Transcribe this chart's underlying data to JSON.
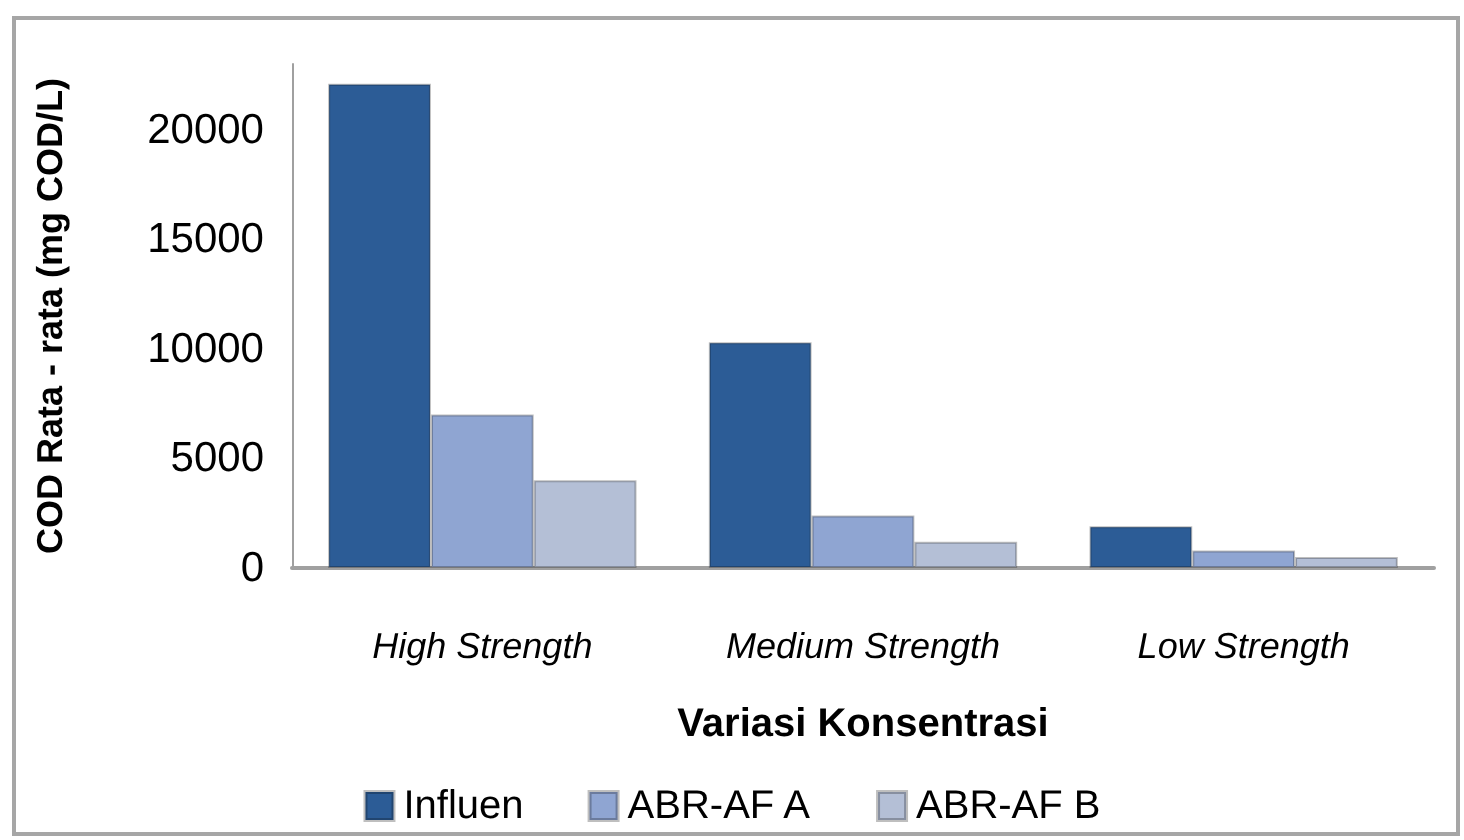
{
  "chart_data": {
    "type": "bar",
    "xlabel": "Variasi Konsentrasi",
    "ylabel": "COD Rata - rata (mg COD/L)",
    "categories": [
      "High Strength",
      "Medium Strength",
      "Low Strength"
    ],
    "series": [
      {
        "name": "Influen",
        "color": "#2c5c96",
        "values": [
          22100,
          10300,
          1900
        ]
      },
      {
        "name": "ABR-AF A",
        "color": "#8fa5d2",
        "values": [
          7000,
          2400,
          800
        ]
      },
      {
        "name": "ABR-AF B",
        "color": "#b4bfd6",
        "values": [
          4000,
          1200,
          500
        ]
      }
    ],
    "ylim": [
      0,
      23000
    ],
    "yticks": [
      0,
      5000,
      10000,
      15000,
      20000
    ],
    "legend": "bottom"
  }
}
